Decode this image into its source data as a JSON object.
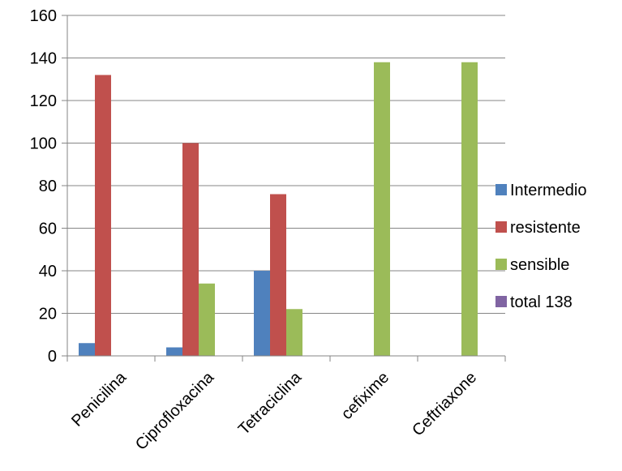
{
  "chart_data": {
    "type": "bar",
    "categories": [
      "Penicilina",
      "Ciprofloxacina",
      "Tetraciclina",
      "cefixime",
      "Ceftriaxone"
    ],
    "series": [
      {
        "name": "Intermedio",
        "color": "#4F81BD",
        "values": [
          6,
          4,
          40,
          0,
          0
        ]
      },
      {
        "name": "resistente",
        "color": "#C0504D",
        "values": [
          132,
          100,
          76,
          0,
          0
        ]
      },
      {
        "name": "sensible",
        "color": "#9BBB59",
        "values": [
          0,
          34,
          22,
          138,
          138
        ]
      },
      {
        "name": "total 138",
        "color": "#8064A2",
        "values": [
          0,
          0,
          0,
          0,
          0
        ]
      }
    ],
    "ylim": [
      0,
      160
    ],
    "yticks": [
      0,
      20,
      40,
      60,
      80,
      100,
      120,
      140,
      160
    ],
    "grid": true,
    "legend": "right"
  }
}
